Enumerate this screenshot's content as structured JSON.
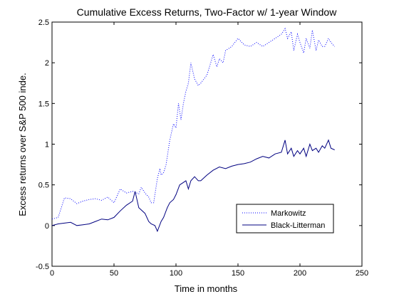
{
  "chart_data": {
    "type": "line",
    "title": "Cumulative Excess Returns, Two-Factor w/ 1-year Window",
    "xlabel": "Time in months",
    "ylabel": "Excess returns over S&P 500 inde.",
    "xlim": [
      0,
      250
    ],
    "ylim": [
      -0.5,
      2.5
    ],
    "xticks": [
      0,
      50,
      100,
      150,
      200,
      250
    ],
    "yticks": [
      -0.5,
      0,
      0.5,
      1,
      1.5,
      2,
      2.5
    ],
    "xtick_labels": [
      "0",
      "50",
      "100",
      "150",
      "200",
      "250"
    ],
    "ytick_labels": [
      "-0.5",
      "0",
      "0.5",
      "1",
      "1.5",
      "2",
      "2.5"
    ],
    "grid": false,
    "legend_position": "bottom-right",
    "series": [
      {
        "name": "Markowitz",
        "color": "#0000ff",
        "style": "dotted",
        "x": [
          0,
          5,
          10,
          15,
          20,
          25,
          30,
          35,
          40,
          45,
          50,
          55,
          60,
          65,
          70,
          72,
          75,
          78,
          80,
          82,
          85,
          87,
          88,
          90,
          92,
          95,
          98,
          100,
          102,
          104,
          106,
          108,
          110,
          112,
          115,
          118,
          120,
          125,
          130,
          133,
          135,
          138,
          140,
          145,
          150,
          155,
          160,
          165,
          170,
          175,
          180,
          185,
          188,
          190,
          193,
          195,
          198,
          200,
          203,
          205,
          208,
          210,
          213,
          215,
          218,
          220,
          223,
          225,
          228
        ],
        "values": [
          0.08,
          0.1,
          0.34,
          0.33,
          0.27,
          0.3,
          0.32,
          0.33,
          0.31,
          0.35,
          0.28,
          0.45,
          0.4,
          0.42,
          0.39,
          0.47,
          0.4,
          0.35,
          0.28,
          0.28,
          0.58,
          0.7,
          0.62,
          0.65,
          0.75,
          1.05,
          1.25,
          1.2,
          1.5,
          1.3,
          1.5,
          1.65,
          1.75,
          2.0,
          1.8,
          1.72,
          1.75,
          1.85,
          2.1,
          1.95,
          2.05,
          2.0,
          2.15,
          2.2,
          2.3,
          2.22,
          2.2,
          2.25,
          2.2,
          2.25,
          2.3,
          2.35,
          2.42,
          2.3,
          2.38,
          2.15,
          2.35,
          2.25,
          2.12,
          2.3,
          2.18,
          2.4,
          2.15,
          2.28,
          2.2,
          2.2,
          2.3,
          2.25,
          2.2
        ]
      },
      {
        "name": "Black-Litterman",
        "color": "#000080",
        "style": "solid",
        "x": [
          0,
          5,
          10,
          15,
          20,
          25,
          30,
          35,
          40,
          45,
          50,
          55,
          60,
          65,
          67,
          70,
          75,
          78,
          80,
          83,
          85,
          88,
          90,
          93,
          95,
          98,
          100,
          103,
          105,
          108,
          110,
          112,
          115,
          118,
          120,
          125,
          130,
          135,
          140,
          145,
          150,
          155,
          160,
          165,
          170,
          175,
          180,
          185,
          188,
          190,
          193,
          195,
          198,
          200,
          203,
          205,
          208,
          210,
          213,
          215,
          218,
          220,
          223,
          225,
          228
        ],
        "values": [
          0.0,
          0.02,
          0.03,
          0.04,
          0.0,
          0.01,
          0.02,
          0.05,
          0.08,
          0.07,
          0.1,
          0.18,
          0.25,
          0.3,
          0.42,
          0.22,
          0.15,
          0.05,
          0.02,
          0.0,
          -0.07,
          0.05,
          0.1,
          0.22,
          0.28,
          0.32,
          0.38,
          0.5,
          0.52,
          0.55,
          0.45,
          0.55,
          0.6,
          0.55,
          0.55,
          0.62,
          0.68,
          0.72,
          0.7,
          0.73,
          0.75,
          0.76,
          0.78,
          0.82,
          0.85,
          0.83,
          0.88,
          0.9,
          1.05,
          0.88,
          0.95,
          0.85,
          0.92,
          0.88,
          0.95,
          0.85,
          1.0,
          0.92,
          0.95,
          0.9,
          0.98,
          0.95,
          1.05,
          0.95,
          0.93
        ]
      }
    ]
  }
}
